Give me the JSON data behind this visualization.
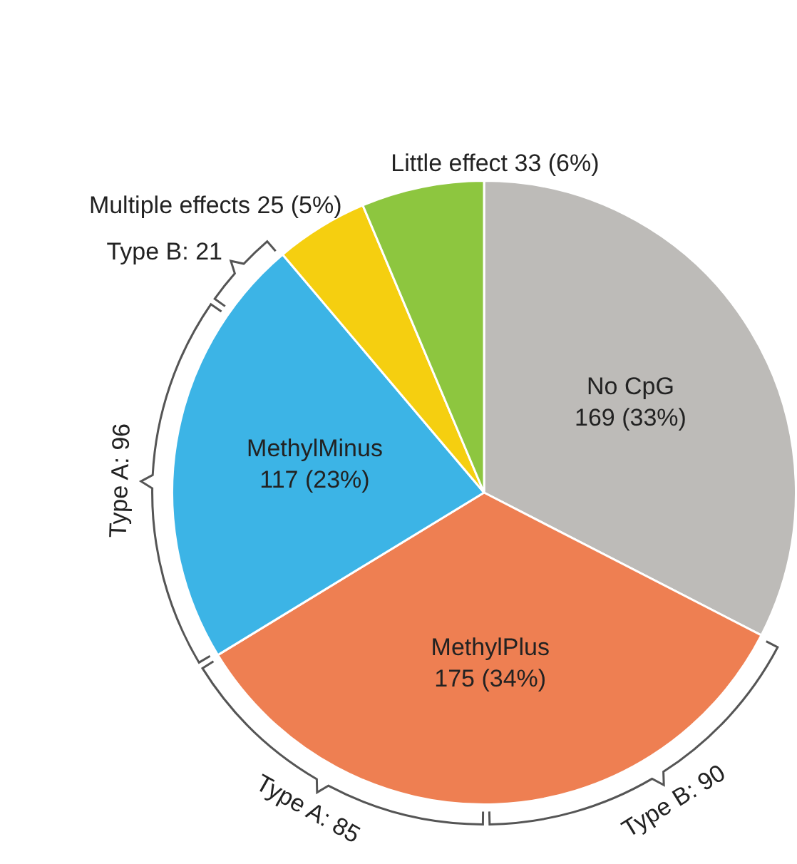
{
  "chart_data": {
    "type": "pie",
    "categories": [
      "No CpG",
      "MethylPlus",
      "MethylMinus",
      "Multiple effects",
      "Little effect"
    ],
    "values": [
      169,
      175,
      117,
      25,
      33
    ],
    "colors": [
      "#bdbbb8",
      "#ee7f52",
      "#3cb4e6",
      "#f5cf10",
      "#8dc63f"
    ],
    "value_labels": [
      "169 (33%)",
      "175 (34%)",
      "117 (23%)",
      "25 (5%)",
      "33 (6%)"
    ],
    "annotations": [
      "Type B: 90",
      "Type A: 85",
      "Type A: 96",
      "Type B: 21"
    ]
  }
}
